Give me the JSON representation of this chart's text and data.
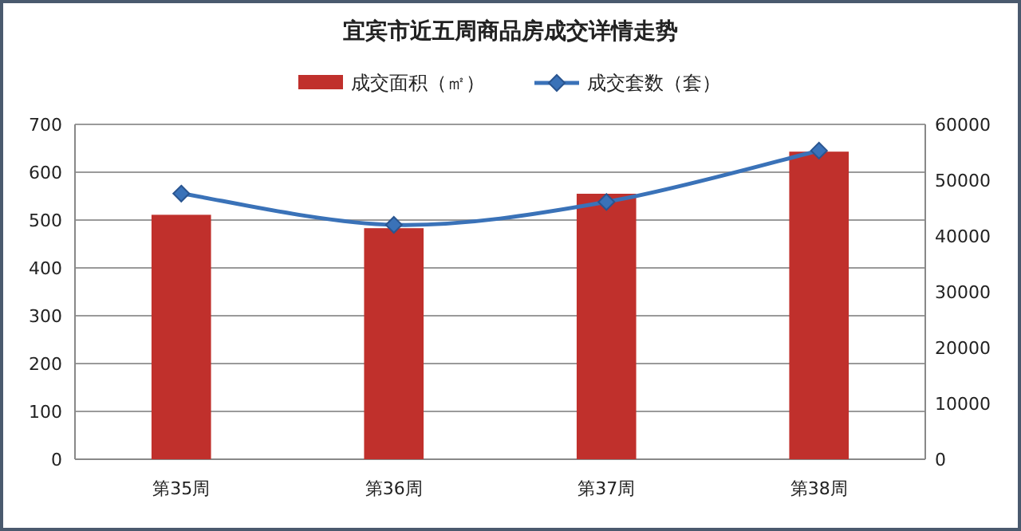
{
  "chart_data": {
    "type": "bar",
    "title": "宜宾市近五周商品房成交详情走势",
    "categories": [
      "第35周",
      "第36周",
      "第37周",
      "第38周"
    ],
    "series": [
      {
        "name": "成交面积（㎡）",
        "color": "#c0302c",
        "values": [
          511,
          483,
          555,
          643
        ]
      },
      {
        "name": "成交套数（套）",
        "type": "line",
        "axis": "y2",
        "color": "#3a72b8",
        "marker": "diamond",
        "values": [
          47600,
          42000,
          46100,
          55300
        ]
      }
    ],
    "ylim": [
      0,
      700
    ],
    "yticks": [
      0,
      100,
      200,
      300,
      400,
      500,
      600,
      700
    ],
    "y2lim": [
      0,
      60000
    ],
    "y2ticks": [
      0,
      10000,
      20000,
      30000,
      40000,
      50000,
      60000
    ],
    "grid": "y",
    "legend": "top"
  }
}
